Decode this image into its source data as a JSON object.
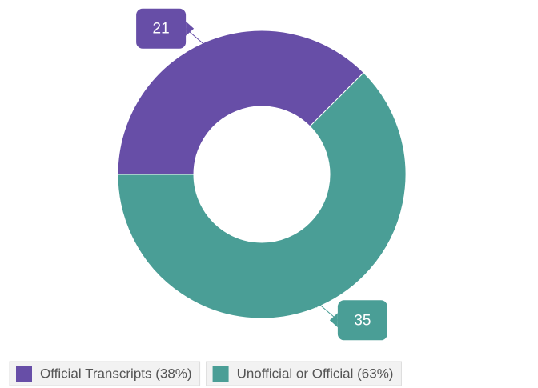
{
  "chart_data": {
    "type": "pie",
    "hole": true,
    "categories": [
      "Official Transcripts (38%)",
      "Unofficial or Official (63%)"
    ],
    "values": [
      21,
      35
    ],
    "colors": [
      "#674ea7",
      "#4a9e96"
    ]
  }
}
